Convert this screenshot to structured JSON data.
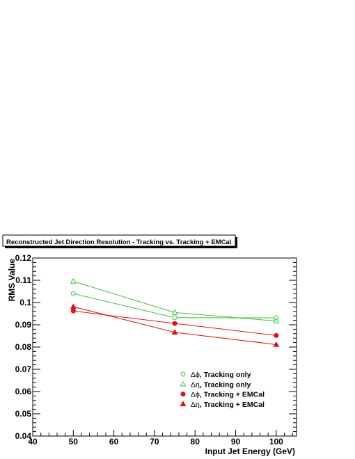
{
  "chart_data": {
    "type": "line",
    "title": "Reconstructed Jet Direction Resolution - Tracking vs. Tracking + EMCal",
    "xlabel": "Input Jet Energy (GeV)",
    "ylabel": "RMS Value",
    "xlim": [
      40,
      105
    ],
    "ylim": [
      0.04,
      0.12
    ],
    "xticks": [
      40,
      50,
      60,
      70,
      80,
      90,
      100
    ],
    "xtick_labels": [
      "40",
      "50",
      "60",
      "70",
      "80",
      "90",
      "100"
    ],
    "yticks": [
      0.04,
      0.05,
      0.06,
      0.07,
      0.08,
      0.09,
      0.1,
      0.11,
      0.12
    ],
    "ytick_labels": [
      "0.04",
      "0.05",
      "0.06",
      "0.07",
      "0.08",
      "0.09",
      "0.1",
      "0.11",
      "0.12"
    ],
    "grid": false,
    "legend_position": "bottom-right",
    "x": [
      50,
      75,
      100
    ],
    "series": [
      {
        "sym": "Δϕ",
        "name": ", Tracking only",
        "values": [
          0.104,
          0.0932,
          0.0931
        ],
        "color": "#3fbf3f",
        "marker": "open-circle"
      },
      {
        "sym": "Δη",
        "name": ", Tracking only",
        "values": [
          0.1095,
          0.0955,
          0.0917
        ],
        "color": "#3fbf3f",
        "marker": "open-triangle"
      },
      {
        "sym": "Δϕ",
        "name": ", Tracking + EMCal",
        "values": [
          0.0962,
          0.0906,
          0.0852
        ],
        "color": "#e01010",
        "marker": "filled-circle"
      },
      {
        "sym": "Δη",
        "name": ", Tracking + EMCal",
        "values": [
          0.0981,
          0.0866,
          0.0811
        ],
        "color": "#e01010",
        "marker": "filled-triangle"
      }
    ]
  }
}
